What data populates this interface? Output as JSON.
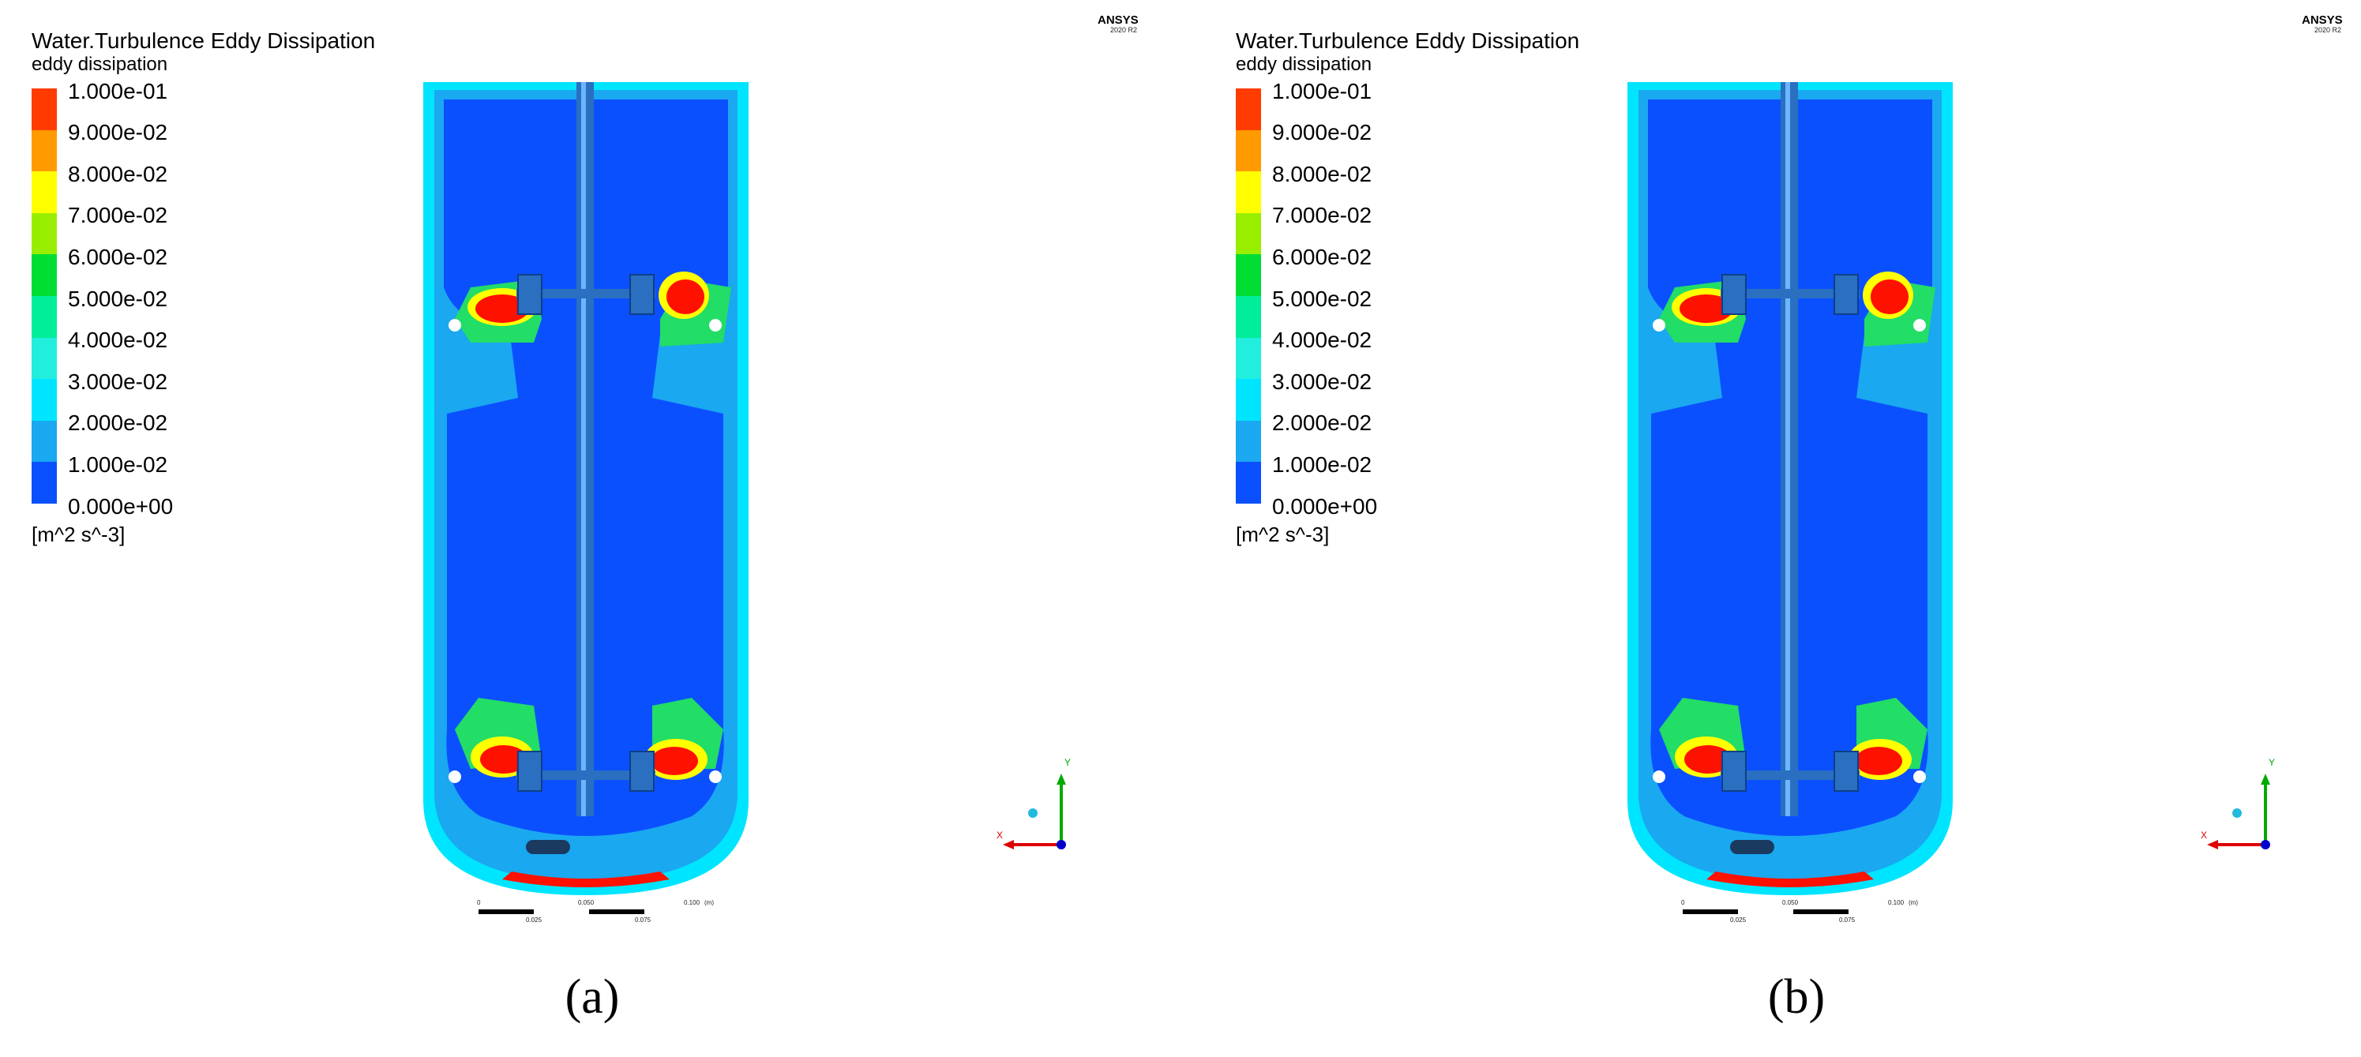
{
  "panels": [
    {
      "caption": "(a)",
      "legend": {
        "title": "Water.Turbulence Eddy Dissipation",
        "subtitle": "eddy dissipation",
        "ticks": [
          "1.000e-01",
          "9.000e-02",
          "8.000e-02",
          "7.000e-02",
          "6.000e-02",
          "5.000e-02",
          "4.000e-02",
          "3.000e-02",
          "2.000e-02",
          "1.000e-02",
          "0.000e+00"
        ],
        "units": "[m^2 s^-3]"
      },
      "brand": {
        "name": "ANSYS",
        "version": "2020 R2"
      },
      "scale": {
        "labels": [
          "0",
          "0.050",
          "0.100",
          "(m)",
          "0.025",
          "0.075"
        ]
      },
      "axes": {
        "y": "Y",
        "x": "X"
      }
    },
    {
      "caption": "(b)",
      "legend": {
        "title": "Water.Turbulence Eddy Dissipation",
        "subtitle": "eddy dissipation",
        "ticks": [
          "1.000e-01",
          "9.000e-02",
          "8.000e-02",
          "7.000e-02",
          "6.000e-02",
          "5.000e-02",
          "4.000e-02",
          "3.000e-02",
          "2.000e-02",
          "1.000e-02",
          "0.000e+00"
        ],
        "units": "[m^2 s^-3]"
      },
      "brand": {
        "name": "ANSYS",
        "version": "2020 R2"
      },
      "scale": {
        "labels": [
          "0",
          "0.050",
          "0.100",
          "(m)",
          "0.025",
          "0.075"
        ]
      },
      "axes": {
        "y": "Y",
        "x": "X"
      }
    }
  ],
  "colormap": [
    "#ff3b00",
    "#ff9a00",
    "#ffff00",
    "#99ee00",
    "#00dd33",
    "#00ee99",
    "#22eedd",
    "#00e5ff",
    "#1aa8f0",
    "#0b50ff"
  ],
  "field_colors": {
    "low": "#0b50ff",
    "mid_low": "#1aa8f0",
    "mid": "#00e5ff",
    "high": "#22dd66",
    "peak_yellow": "#ffff00",
    "peak": "#ff1100"
  }
}
